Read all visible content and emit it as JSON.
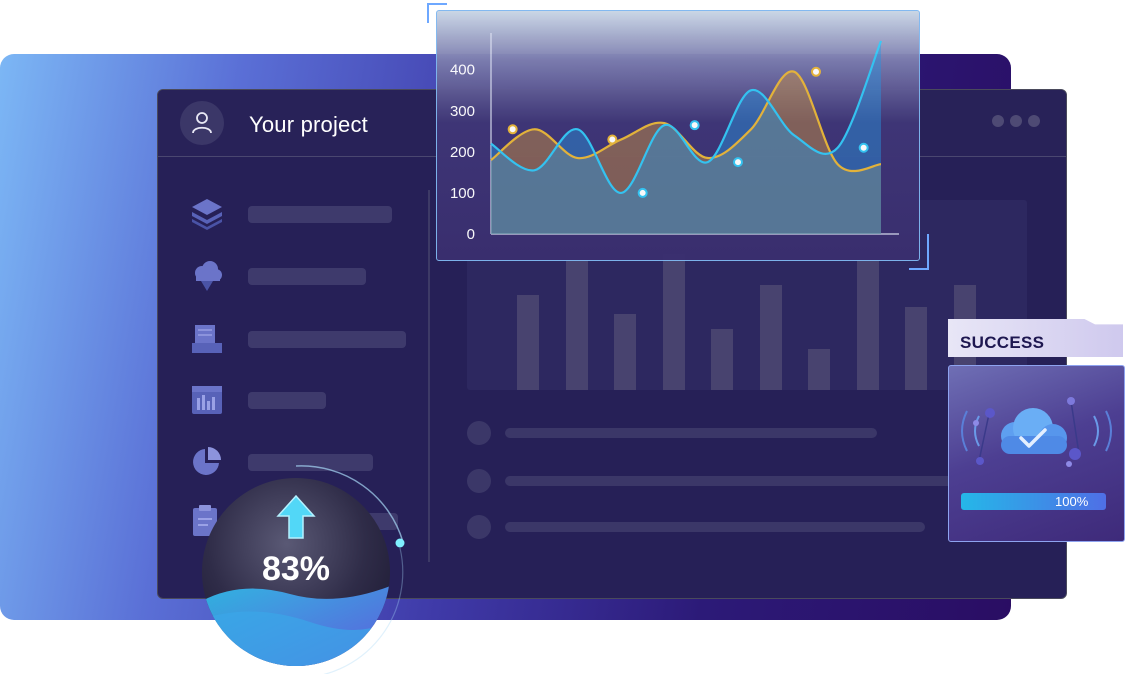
{
  "window": {
    "title": "Your project",
    "sidebar_icons": [
      "layers-icon",
      "cloud-download-icon",
      "inbox-icon",
      "bar-chart-icon",
      "pie-chart-icon",
      "clipboard-icon"
    ],
    "bg_bars_relative_heights": [
      0.64,
      0.88,
      0.51,
      0.92,
      0.41,
      0.71,
      0.28,
      0.88,
      0.56,
      0.71
    ]
  },
  "chart_data": {
    "type": "area",
    "y_ticks": [
      "0",
      "100",
      "200",
      "300",
      "400"
    ],
    "ylim": [
      0,
      470
    ],
    "x": [
      0,
      1,
      2,
      3,
      4,
      5,
      6,
      7,
      8,
      9
    ],
    "series": [
      {
        "color": "#e9b73a",
        "values": [
          180,
          255,
          185,
          230,
          270,
          185,
          255,
          395,
          170,
          170
        ]
      },
      {
        "color": "#35c8f5",
        "values": [
          220,
          155,
          255,
          100,
          265,
          175,
          350,
          240,
          210,
          470
        ]
      }
    ],
    "marker_points": [
      {
        "series": 0,
        "x": 0.5,
        "y": 255
      },
      {
        "series": 0,
        "x": 2.8,
        "y": 230
      },
      {
        "series": 1,
        "x": 3.5,
        "y": 100
      },
      {
        "series": 1,
        "x": 4.7,
        "y": 265
      },
      {
        "series": 1,
        "x": 5.7,
        "y": 175
      },
      {
        "series": 0,
        "x": 7.5,
        "y": 395
      },
      {
        "series": 1,
        "x": 8.6,
        "y": 210
      }
    ]
  },
  "success_card": {
    "label": "SUCCESS",
    "progress_text": "100%",
    "progress_value": 1.0,
    "icon": "cloud-check-icon"
  },
  "upload_bubble": {
    "percent_text": "83%",
    "value": 0.83,
    "icon": "arrow-up-icon"
  }
}
